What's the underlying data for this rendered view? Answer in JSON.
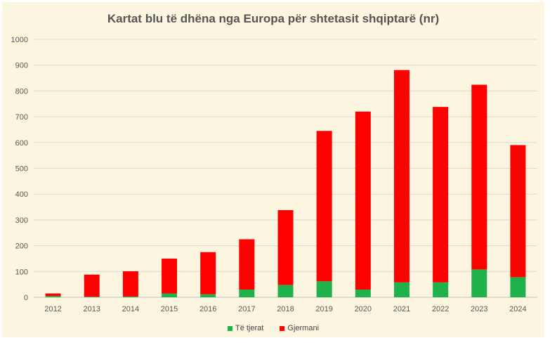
{
  "chart_data": {
    "type": "bar",
    "stacked": true,
    "title": "Kartat blu të dhëna nga Europa për shtetasit shqiptarë (nr)",
    "xlabel": "",
    "ylabel": "",
    "ylim": [
      0,
      1000
    ],
    "yticks": [
      0,
      100,
      200,
      300,
      400,
      500,
      600,
      700,
      800,
      900,
      1000
    ],
    "categories": [
      "2012",
      "2013",
      "2014",
      "2015",
      "2016",
      "2017",
      "2018",
      "2019",
      "2020",
      "2021",
      "2022",
      "2023",
      "2024"
    ],
    "series": [
      {
        "name": "Të tjerat",
        "color": "#1fb24c",
        "values": [
          5,
          2,
          3,
          15,
          12,
          30,
          48,
          62,
          30,
          58,
          58,
          108,
          78
        ]
      },
      {
        "name": "Gjermani",
        "color": "#ff0000",
        "values": [
          10,
          86,
          98,
          135,
          163,
          195,
          290,
          583,
          690,
          823,
          680,
          716,
          512
        ]
      }
    ],
    "legend": "bottom",
    "grid": true
  }
}
